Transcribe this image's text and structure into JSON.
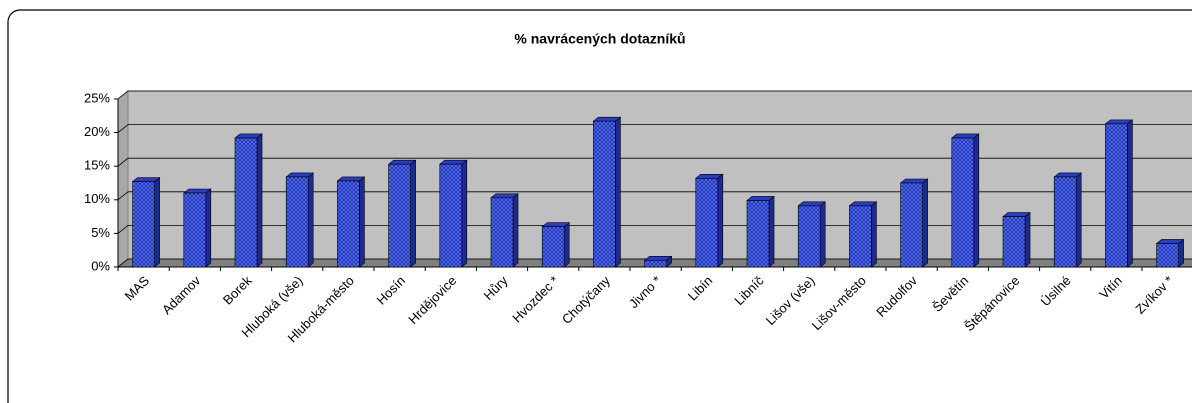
{
  "chart_data": {
    "type": "bar",
    "title": "% navrácených dotazníků",
    "categories": [
      "MAS",
      "Adamov",
      "Borek",
      "Hluboká (vše)",
      "Hluboká-město",
      "Hosín",
      "Hrdějovice",
      "Hůry",
      "Hvozdec *",
      "Chotýčany",
      "Jivno *",
      "Libín",
      "Libníč",
      "Lišov (vše)",
      "Lišov-město",
      "Rudolfov",
      "Ševětín",
      "Štěpánovice",
      "Úsilné",
      "Vitín",
      "Zvíkov *"
    ],
    "values": [
      12.7,
      11,
      19.2,
      13.4,
      12.8,
      15.3,
      15.3,
      10.3,
      6,
      21.7,
      1,
      13.2,
      9.9,
      9.1,
      9.1,
      12.5,
      19.2,
      7.5,
      13.4,
      21.3,
      3.5
    ],
    "color": "#3d55f0",
    "ylim": [
      0,
      25
    ],
    "yticks": [
      {
        "value": 0,
        "label": "0%"
      },
      {
        "value": 5,
        "label": "5%"
      },
      {
        "value": 10,
        "label": "10%"
      },
      {
        "value": 15,
        "label": "15%"
      },
      {
        "value": 20,
        "label": "20%"
      },
      {
        "value": 25,
        "label": "25%"
      }
    ],
    "grid": true
  }
}
